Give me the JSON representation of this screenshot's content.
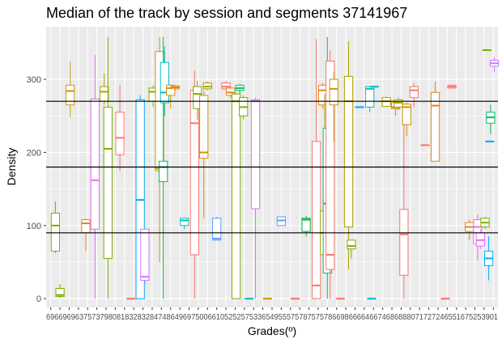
{
  "chart_data": {
    "type": "boxplot",
    "title": "Median of the track by session and segments 37141967",
    "xlabel": "Grades(º)",
    "ylabel": "Density",
    "ylim": [
      -12,
      372
    ],
    "y_ticks": [
      0,
      100,
      200,
      300
    ],
    "grid": true,
    "legend": "none",
    "x_tick_text": "6966969637573798081832832847486496975006610525257533654955575787575786698666646674686888071727246551675253901",
    "reference_lines": [
      90,
      180,
      270
    ],
    "reference_line_color": "#000000",
    "panel_background": "#ebebeb",
    "grid_color": "#ffffff",
    "boxes": [
      {
        "x": 0.5,
        "min": 62,
        "q1": 65,
        "median": 100,
        "q3": 117,
        "max": 133,
        "color": "#7cae00"
      },
      {
        "x": 1.0,
        "min": 1,
        "q1": 3,
        "median": 5,
        "q3": 14,
        "max": 20,
        "color": "#7cae00"
      },
      {
        "x": 2.1,
        "min": 248,
        "q1": 265,
        "median": 284,
        "q3": 292,
        "max": 325,
        "color": "#cd9600"
      },
      {
        "x": 3.8,
        "min": 65,
        "q1": 90,
        "median": 103,
        "q3": 108,
        "max": 110,
        "color": "#e68613"
      },
      {
        "x": 4.8,
        "min": 0,
        "q1": 95,
        "median": 162,
        "q3": 273,
        "max": 333,
        "color": "#e76bf3"
      },
      {
        "x": 5.8,
        "min": 265,
        "q1": 270,
        "median": 283,
        "q3": 290,
        "max": 308,
        "color": "#aba300"
      },
      {
        "x": 6.2,
        "min": 0,
        "q1": 55,
        "median": 205,
        "q3": 262,
        "max": 358,
        "color": "#7cae00"
      },
      {
        "x": 7.5,
        "min": 175,
        "q1": 197,
        "median": 220,
        "q3": 255,
        "max": 292,
        "color": "#f8766d"
      },
      {
        "x": 8.7,
        "min": 0,
        "q1": 0,
        "median": 0,
        "q3": 0,
        "max": 0,
        "color": "#f8766d"
      },
      {
        "x": 9.7,
        "min": 0,
        "q1": 0,
        "median": 135,
        "q3": 272,
        "max": 278,
        "color": "#00a9ff"
      },
      {
        "x": 10.2,
        "min": 20,
        "q1": 25,
        "median": 30,
        "q3": 95,
        "max": 95,
        "color": "#c77cff"
      },
      {
        "x": 11.1,
        "min": 262,
        "q1": 270,
        "median": 283,
        "q3": 288,
        "max": 292,
        "color": "#7cae00"
      },
      {
        "x": 11.8,
        "min": 50,
        "q1": 175,
        "median": 178,
        "q3": 338,
        "max": 358,
        "color": "#cd9600"
      },
      {
        "x": 12.2,
        "min": 0,
        "q1": 160,
        "median": 180,
        "q3": 188,
        "max": 358,
        "color": "#00be67"
      },
      {
        "x": 12.35,
        "min": 250,
        "q1": 268,
        "median": 282,
        "q3": 323,
        "max": 345,
        "color": "#00bfc4"
      },
      {
        "x": 13.0,
        "min": 260,
        "q1": 278,
        "median": 288,
        "q3": 292,
        "max": 293,
        "color": "#cd9600"
      },
      {
        "x": 13.5,
        "min": 285,
        "q1": 287,
        "median": 289,
        "q3": 291,
        "max": 292,
        "color": "#e68613"
      },
      {
        "x": 14.5,
        "min": 95,
        "q1": 100,
        "median": 107,
        "q3": 110,
        "max": 110,
        "color": "#00bfc4"
      },
      {
        "x": 15.6,
        "min": 0,
        "q1": 60,
        "median": 240,
        "q3": 285,
        "max": 312,
        "color": "#f8766d"
      },
      {
        "x": 15.9,
        "min": 245,
        "q1": 260,
        "median": 280,
        "q3": 290,
        "max": 298,
        "color": "#7cae00"
      },
      {
        "x": 16.6,
        "min": 110,
        "q1": 192,
        "median": 200,
        "q3": 278,
        "max": 284,
        "color": "#cd9600"
      },
      {
        "x": 17.0,
        "min": 285,
        "q1": 287,
        "median": 290,
        "q3": 295,
        "max": 297,
        "color": "#aba300"
      },
      {
        "x": 18.0,
        "min": 80,
        "q1": 80,
        "median": 82,
        "q3": 110,
        "max": 112,
        "color": "#619cff"
      },
      {
        "x": 19.0,
        "min": 285,
        "q1": 287,
        "median": 290,
        "q3": 295,
        "max": 298,
        "color": "#f8766d"
      },
      {
        "x": 19.5,
        "min": 275,
        "q1": 278,
        "median": 282,
        "q3": 288,
        "max": 290,
        "color": "#e68613"
      },
      {
        "x": 20.1,
        "min": 0,
        "q1": 0,
        "median": 270,
        "q3": 280,
        "max": 282,
        "color": "#7cae00"
      },
      {
        "x": 20.5,
        "min": 280,
        "q1": 285,
        "median": 288,
        "q3": 292,
        "max": 294,
        "color": "#00be67"
      },
      {
        "x": 20.9,
        "min": 245,
        "q1": 250,
        "median": 262,
        "q3": 275,
        "max": 278,
        "color": "#7cae00"
      },
      {
        "x": 21.5,
        "min": 0,
        "q1": 0,
        "median": 0,
        "q3": 0,
        "max": 0,
        "color": "#00bfc4"
      },
      {
        "x": 22.2,
        "min": 0,
        "q1": 123,
        "median": 270,
        "q3": 272,
        "max": 275,
        "color": "#e76bf3"
      },
      {
        "x": 23.5,
        "min": 0,
        "q1": 0,
        "median": 0,
        "q3": 0,
        "max": 0,
        "color": "#cd9600"
      },
      {
        "x": 25.0,
        "min": 100,
        "q1": 100,
        "median": 107,
        "q3": 112,
        "max": 112,
        "color": "#619cff"
      },
      {
        "x": 26.5,
        "min": 0,
        "q1": 0,
        "median": 0,
        "q3": 0,
        "max": 0,
        "color": "#f8766d"
      },
      {
        "x": 27.7,
        "min": 85,
        "q1": 92,
        "median": 108,
        "q3": 110,
        "max": 113,
        "color": "#00ba38"
      },
      {
        "x": 28.8,
        "min": 0,
        "q1": 0,
        "median": 18,
        "q3": 215,
        "max": 355,
        "color": "#f8766d"
      },
      {
        "x": 29.5,
        "min": 260,
        "q1": 265,
        "median": 285,
        "q3": 292,
        "max": 295,
        "color": "#e68613"
      },
      {
        "x": 29.7,
        "min": 40,
        "q1": 60,
        "median": 90,
        "q3": 120,
        "max": 280,
        "color": "#aba300"
      },
      {
        "x": 30.0,
        "min": 0,
        "q1": 35,
        "median": 130,
        "q3": 233,
        "max": 358,
        "color": "#00be67"
      },
      {
        "x": 30.3,
        "min": 0,
        "q1": 40,
        "median": 60,
        "q3": 325,
        "max": 340,
        "color": "#f8766d"
      },
      {
        "x": 30.7,
        "min": 215,
        "q1": 265,
        "median": 287,
        "q3": 300,
        "max": 310,
        "color": "#cd9600"
      },
      {
        "x": 31.4,
        "min": 0,
        "q1": 0,
        "median": 0,
        "q3": 0,
        "max": 0,
        "color": "#f8766d"
      },
      {
        "x": 32.3,
        "min": 40,
        "q1": 98,
        "median": 270,
        "q3": 304,
        "max": 352,
        "color": "#aba300"
      },
      {
        "x": 32.6,
        "min": 55,
        "q1": 68,
        "median": 72,
        "q3": 80,
        "max": 80,
        "color": "#7cae00"
      },
      {
        "x": 33.5,
        "min": 262,
        "q1": 262,
        "median": 262,
        "q3": 262,
        "max": 262,
        "color": "#00a9ff"
      },
      {
        "x": 34.6,
        "min": 255,
        "q1": 262,
        "median": 287,
        "q3": 290,
        "max": 290,
        "color": "#00bfc4"
      },
      {
        "x": 34.8,
        "min": 0,
        "q1": 0,
        "median": 0,
        "q3": 0,
        "max": 0,
        "color": "#00bfc4"
      },
      {
        "x": 35.1,
        "min": 290,
        "q1": 290,
        "median": 290,
        "q3": 290,
        "max": 290,
        "color": "#00bfc4"
      },
      {
        "x": 36.4,
        "min": 262,
        "q1": 263,
        "median": 270,
        "q3": 275,
        "max": 276,
        "color": "#aba300"
      },
      {
        "x": 37.4,
        "min": 250,
        "q1": 260,
        "median": 262,
        "q3": 268,
        "max": 270,
        "color": "#e68613"
      },
      {
        "x": 37.7,
        "min": 258,
        "q1": 262,
        "median": 268,
        "q3": 272,
        "max": 275,
        "color": "#aba300"
      },
      {
        "x": 38.3,
        "min": 0,
        "q1": 32,
        "median": 88,
        "q3": 122,
        "max": 255,
        "color": "#f8766d"
      },
      {
        "x": 38.6,
        "min": 222,
        "q1": 238,
        "median": 262,
        "q3": 266,
        "max": 268,
        "color": "#cd9600"
      },
      {
        "x": 39.4,
        "min": 262,
        "q1": 275,
        "median": 285,
        "q3": 290,
        "max": 295,
        "color": "#f8766d"
      },
      {
        "x": 40.6,
        "min": 210,
        "q1": 210,
        "median": 210,
        "q3": 210,
        "max": 210,
        "color": "#f8766d"
      },
      {
        "x": 41.7,
        "min": 188,
        "q1": 188,
        "median": 264,
        "q3": 282,
        "max": 297,
        "color": "#e68613"
      },
      {
        "x": 42.8,
        "min": 0,
        "q1": 0,
        "median": 0,
        "q3": 0,
        "max": 0,
        "color": "#f8766d"
      },
      {
        "x": 43.5,
        "min": 288,
        "q1": 288,
        "median": 290,
        "q3": 292,
        "max": 292,
        "color": "#f8766d"
      },
      {
        "x": 45.4,
        "min": 80,
        "q1": 92,
        "median": 98,
        "q3": 104,
        "max": 108,
        "color": "#e68613"
      },
      {
        "x": 46.3,
        "min": 52,
        "q1": 75,
        "median": 98,
        "q3": 108,
        "max": 115,
        "color": "#e76bf3"
      },
      {
        "x": 46.6,
        "min": 68,
        "q1": 72,
        "median": 80,
        "q3": 90,
        "max": 95,
        "color": "#e76bf3"
      },
      {
        "x": 47.1,
        "min": 95,
        "q1": 98,
        "median": 104,
        "q3": 110,
        "max": 112,
        "color": "#7cae00"
      },
      {
        "x": 47.3,
        "min": 340,
        "q1": 340,
        "median": 340,
        "q3": 340,
        "max": 340,
        "color": "#7cae00"
      },
      {
        "x": 47.5,
        "min": 25,
        "q1": 45,
        "median": 55,
        "q3": 65,
        "max": 85,
        "color": "#00a9ff"
      },
      {
        "x": 47.6,
        "min": 215,
        "q1": 215,
        "median": 215,
        "q3": 215,
        "max": 215,
        "color": "#00a9ff"
      },
      {
        "x": 47.7,
        "min": 225,
        "q1": 240,
        "median": 248,
        "q3": 255,
        "max": 265,
        "color": "#00be67"
      },
      {
        "x": 48.1,
        "min": 310,
        "q1": 318,
        "median": 322,
        "q3": 326,
        "max": 330,
        "color": "#c77cff"
      }
    ]
  }
}
